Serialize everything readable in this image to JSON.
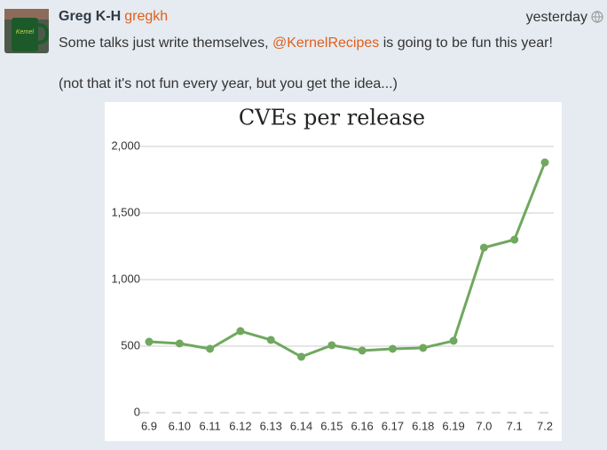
{
  "post": {
    "author": "Greg K-H",
    "handle": "gregkh",
    "time": "yesterday",
    "text_before": "Some talks just write themselves, ",
    "mention": "@KernelRecipes",
    "text_after": " is going to be fun this year!",
    "paragraph2": "(not that it's not fun every year, but you get the idea...)"
  },
  "chart_data": {
    "type": "line",
    "title": "CVEs per release",
    "categories": [
      "6.9",
      "6.10",
      "6.11",
      "6.12",
      "6.13",
      "6.14",
      "6.15",
      "6.16",
      "6.17",
      "6.18",
      "6.19",
      "7.0",
      "7.1",
      "7.2"
    ],
    "series": [
      {
        "name": "CVEs",
        "color": "#6fa85e",
        "values": [
          533,
          520,
          480,
          613,
          547,
          420,
          507,
          467,
          480,
          487,
          540,
          1240,
          1300,
          1880
        ]
      }
    ],
    "ylim": [
      0,
      2000
    ],
    "yticks": [
      0,
      500,
      {
        "value": 1000,
        "label": "1,000"
      },
      {
        "value": 1500,
        "label": "1,500"
      },
      {
        "value": 2000,
        "label": "2,000"
      }
    ],
    "grid": true
  }
}
